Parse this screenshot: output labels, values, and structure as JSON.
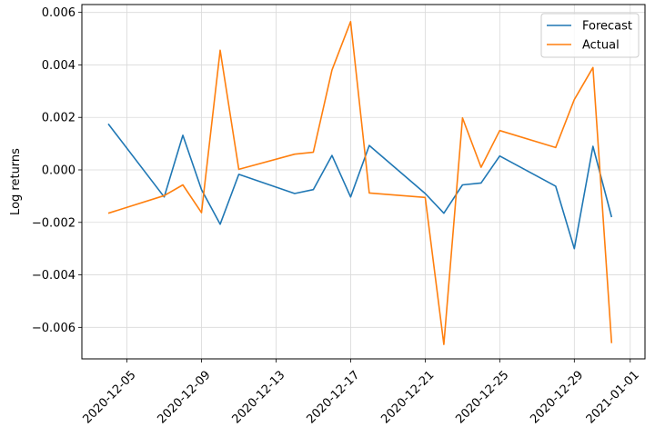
{
  "chart_data": {
    "type": "line",
    "xlabel": "",
    "ylabel": "Log returns",
    "x_ticks": [
      "2020-12-05",
      "2020-12-09",
      "2020-12-13",
      "2020-12-17",
      "2020-12-21",
      "2020-12-25",
      "2020-12-29",
      "2021-01-01"
    ],
    "ylim": [
      -0.0072,
      0.0063
    ],
    "y_ticks": [
      "0.006",
      "0.004",
      "0.002",
      "0.000",
      "−0.002",
      "−0.004",
      "−0.006"
    ],
    "grid": true,
    "legend_position": "top-right",
    "series": [
      {
        "name": "Forecast",
        "color": "#1f77b4",
        "points": [
          [
            "2020-12-04",
            0.00175
          ],
          [
            "2020-12-07",
            -0.00103
          ],
          [
            "2020-12-08",
            0.00132
          ],
          [
            "2020-12-09",
            -0.00075
          ],
          [
            "2020-12-10",
            -0.00207
          ],
          [
            "2020-12-11",
            -0.00017
          ],
          [
            "2020-12-14",
            -0.0009
          ],
          [
            "2020-12-15",
            -0.00075
          ],
          [
            "2020-12-16",
            0.00055
          ],
          [
            "2020-12-17",
            -0.00103
          ],
          [
            "2020-12-18",
            0.00093
          ],
          [
            "2020-12-21",
            -0.0009
          ],
          [
            "2020-12-22",
            -0.00165
          ],
          [
            "2020-12-23",
            -0.00057
          ],
          [
            "2020-12-24",
            -0.0005
          ],
          [
            "2020-12-25",
            0.00053
          ],
          [
            "2020-12-28",
            -0.00062
          ],
          [
            "2020-12-29",
            -0.003
          ],
          [
            "2020-12-30",
            0.0009
          ],
          [
            "2020-12-31",
            -0.0018
          ]
        ]
      },
      {
        "name": "Actual",
        "color": "#ff7f0e",
        "points": [
          [
            "2020-12-04",
            -0.00165
          ],
          [
            "2020-12-07",
            -0.00098
          ],
          [
            "2020-12-08",
            -0.00057
          ],
          [
            "2020-12-09",
            -0.00163
          ],
          [
            "2020-12-10",
            0.00456
          ],
          [
            "2020-12-11",
            2e-05
          ],
          [
            "2020-12-14",
            0.0006
          ],
          [
            "2020-12-15",
            0.00067
          ],
          [
            "2020-12-16",
            0.0038
          ],
          [
            "2020-12-17",
            0.00565
          ],
          [
            "2020-12-18",
            -0.00088
          ],
          [
            "2020-12-21",
            -0.00105
          ],
          [
            "2020-12-22",
            -0.00665
          ],
          [
            "2020-12-23",
            0.00198
          ],
          [
            "2020-12-24",
            0.0001
          ],
          [
            "2020-12-25",
            0.0015
          ],
          [
            "2020-12-28",
            0.00085
          ],
          [
            "2020-12-29",
            0.00268
          ],
          [
            "2020-12-30",
            0.0039
          ],
          [
            "2020-12-31",
            -0.0066
          ]
        ]
      }
    ]
  }
}
